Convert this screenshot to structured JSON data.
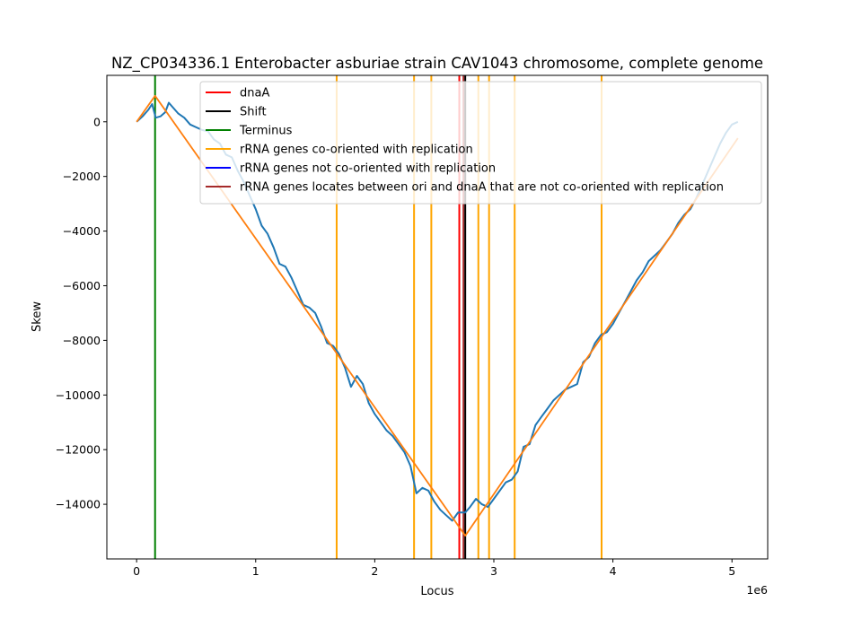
{
  "chart_data": {
    "type": "line",
    "title": "NZ_CP034336.1 Enterobacter asburiae strain CAV1043 chromosome, complete genome",
    "xlabel": "Locus",
    "ylabel": "Skew",
    "x_offset_text": "1e6",
    "xlim": [
      -250000,
      5300000
    ],
    "ylim": [
      -16000,
      1700
    ],
    "x_ticks": [
      0,
      1000000,
      2000000,
      3000000,
      4000000,
      5000000
    ],
    "x_tick_labels": [
      "0",
      "1",
      "2",
      "3",
      "4",
      "5"
    ],
    "y_ticks": [
      0,
      -2000,
      -4000,
      -6000,
      -8000,
      -10000,
      -12000,
      -14000
    ],
    "y_tick_labels": [
      "0",
      "−2000",
      "−4000",
      "−6000",
      "−8000",
      "−10000",
      "−12000",
      "−14000"
    ],
    "legend": {
      "placement": "top-right",
      "entries": [
        {
          "label": "dnaA",
          "color": "#ff0000"
        },
        {
          "label": "Shift",
          "color": "#000000"
        },
        {
          "label": "Terminus",
          "color": "#008000"
        },
        {
          "label": "rRNA genes co-oriented with replication",
          "color": "#ffa500"
        },
        {
          "label": "rRNA genes not co-oriented with replication",
          "color": "#0000ff"
        },
        {
          "label": "rRNA genes locates between ori and dnaA that are not co-oriented with replication",
          "color": "#a52a2a"
        }
      ]
    },
    "vertical_lines": [
      {
        "series": "Terminus",
        "x": 155000,
        "color": "#008000"
      },
      {
        "series": "rRNA genes co-oriented with replication",
        "x": 1680000,
        "color": "#ffa500"
      },
      {
        "series": "rRNA genes co-oriented with replication",
        "x": 2330000,
        "color": "#ffa500"
      },
      {
        "series": "rRNA genes co-oriented with replication",
        "x": 2475000,
        "color": "#ffa500"
      },
      {
        "series": "rRNA genes co-oriented with replication",
        "x": 2870000,
        "color": "#ffa500"
      },
      {
        "series": "rRNA genes co-oriented with replication",
        "x": 2960000,
        "color": "#ffa500"
      },
      {
        "series": "rRNA genes co-oriented with replication",
        "x": 3175000,
        "color": "#ffa500"
      },
      {
        "series": "rRNA genes co-oriented with replication",
        "x": 3905000,
        "color": "#ffa500"
      },
      {
        "series": "rRNA genes locates between ori and dnaA that are not co-oriented with replication",
        "x": 2745000,
        "color": "#a52a2a"
      },
      {
        "series": "dnaA",
        "x": 2710000,
        "color": "#ff0000"
      },
      {
        "series": "Shift",
        "x": 2760000,
        "color": "#000000"
      }
    ],
    "series": [
      {
        "color": "#1f77b4",
        "x": [
          0,
          50000,
          100000,
          130000,
          160000,
          200000,
          240000,
          270000,
          300000,
          350000,
          400000,
          450000,
          500000,
          550000,
          600000,
          650000,
          700000,
          750000,
          800000,
          850000,
          900000,
          950000,
          1000000,
          1050000,
          1100000,
          1150000,
          1200000,
          1250000,
          1300000,
          1350000,
          1400000,
          1450000,
          1500000,
          1550000,
          1600000,
          1650000,
          1700000,
          1750000,
          1800000,
          1850000,
          1900000,
          1950000,
          2000000,
          2050000,
          2100000,
          2150000,
          2200000,
          2250000,
          2300000,
          2350000,
          2400000,
          2450000,
          2500000,
          2550000,
          2600000,
          2650000,
          2700000,
          2760000,
          2800000,
          2850000,
          2900000,
          2950000,
          3000000,
          3050000,
          3100000,
          3150000,
          3200000,
          3250000,
          3300000,
          3350000,
          3400000,
          3450000,
          3500000,
          3550000,
          3600000,
          3650000,
          3700000,
          3750000,
          3800000,
          3850000,
          3900000,
          3950000,
          4000000,
          4050000,
          4100000,
          4150000,
          4200000,
          4250000,
          4300000,
          4350000,
          4400000,
          4450000,
          4500000,
          4550000,
          4600000,
          4650000,
          4700000,
          4750000,
          4800000,
          4850000,
          4900000,
          4950000,
          5000000,
          5050000
        ],
        "values": [
          0,
          200,
          450,
          650,
          150,
          200,
          350,
          700,
          550,
          300,
          150,
          -100,
          -200,
          -300,
          -350,
          -650,
          -800,
          -1200,
          -1300,
          -1800,
          -2200,
          -2700,
          -3200,
          -3800,
          -4100,
          -4600,
          -5200,
          -5300,
          -5700,
          -6200,
          -6700,
          -6800,
          -7000,
          -7500,
          -8100,
          -8200,
          -8500,
          -9000,
          -9700,
          -9300,
          -9600,
          -10300,
          -10700,
          -11000,
          -11300,
          -11500,
          -11800,
          -12100,
          -12600,
          -13600,
          -13400,
          -13500,
          -13900,
          -14200,
          -14400,
          -14600,
          -14300,
          -14300,
          -14100,
          -13800,
          -14000,
          -14100,
          -13800,
          -13500,
          -13200,
          -13100,
          -12800,
          -11900,
          -11800,
          -11100,
          -10800,
          -10500,
          -10200,
          -10000,
          -9800,
          -9700,
          -9600,
          -8800,
          -8600,
          -8100,
          -7800,
          -7700,
          -7400,
          -7000,
          -6600,
          -6200,
          -5800,
          -5500,
          -5100,
          -4900,
          -4700,
          -4400,
          -4100,
          -3700,
          -3400,
          -3200,
          -2800,
          -2300,
          -1800,
          -1300,
          -800,
          -400,
          -100,
          0
        ]
      },
      {
        "color": "#ff7f0e",
        "x": [
          0,
          155000,
          2760000,
          5050000
        ],
        "values": [
          0,
          950,
          -15150,
          -600
        ]
      }
    ],
    "grid": false
  }
}
